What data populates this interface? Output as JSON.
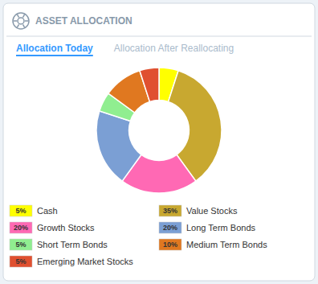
{
  "chart_data": {
    "type": "donut",
    "title": "ASSET ALLOCATION",
    "annotations": [
      "Allocation Today",
      "Allocation After Reallocating"
    ],
    "categories": [
      "Cash",
      "Value Stocks",
      "Growth Stocks",
      "Long Term Bonds",
      "Short Term Bonds",
      "Medium Term Bonds",
      "Emerging Market Stocks"
    ],
    "values": [
      5,
      35,
      20,
      20,
      5,
      10,
      5
    ],
    "value_labels": [
      "5%",
      "35%",
      "20%",
      "20%",
      "5%",
      "10%",
      "5%"
    ],
    "colors": [
      "#ffff00",
      "#c8a830",
      "#ff69b4",
      "#7b9fd4",
      "#90ee90",
      "#e07820",
      "#e05030"
    ],
    "legend": "bottom"
  }
}
